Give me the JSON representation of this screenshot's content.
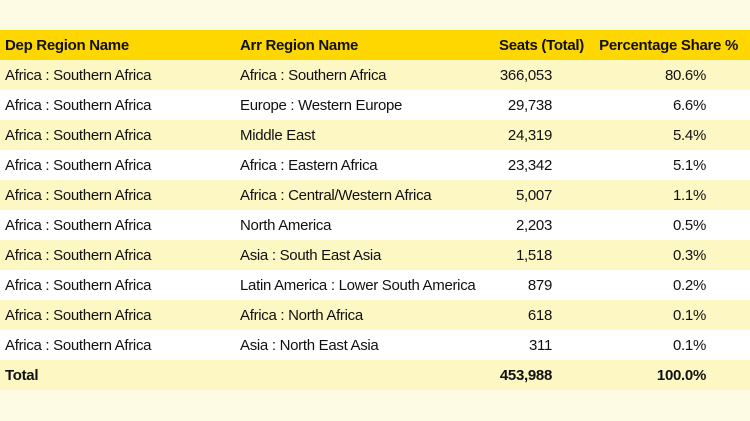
{
  "table": {
    "headers": {
      "dep": "Dep Region Name",
      "arr": "Arr Region Name",
      "seats": "Seats (Total)",
      "pct": "Percentage Share %"
    },
    "rows": [
      {
        "dep": "Africa : Southern Africa",
        "arr": "Africa : Southern Africa",
        "seats": "366,053",
        "pct": "80.6%"
      },
      {
        "dep": "Africa : Southern Africa",
        "arr": "Europe : Western Europe",
        "seats": "29,738",
        "pct": "6.6%"
      },
      {
        "dep": "Africa : Southern Africa",
        "arr": "Middle East",
        "seats": "24,319",
        "pct": "5.4%"
      },
      {
        "dep": "Africa : Southern Africa",
        "arr": "Africa : Eastern Africa",
        "seats": "23,342",
        "pct": "5.1%"
      },
      {
        "dep": "Africa : Southern Africa",
        "arr": "Africa : Central/Western Africa",
        "seats": "5,007",
        "pct": "1.1%"
      },
      {
        "dep": "Africa : Southern Africa",
        "arr": "North America",
        "seats": "2,203",
        "pct": "0.5%"
      },
      {
        "dep": "Africa : Southern Africa",
        "arr": "Asia : South East Asia",
        "seats": "1,518",
        "pct": "0.3%"
      },
      {
        "dep": "Africa : Southern Africa",
        "arr": "Latin America : Lower South America",
        "seats": "879",
        "pct": "0.2%"
      },
      {
        "dep": "Africa : Southern Africa",
        "arr": "Africa : North Africa",
        "seats": "618",
        "pct": "0.1%"
      },
      {
        "dep": "Africa : Southern Africa",
        "arr": "Asia : North East Asia",
        "seats": "311",
        "pct": "0.1%"
      }
    ],
    "total": {
      "label": "Total",
      "seats": "453,988",
      "pct": "100.0%"
    }
  },
  "colors": {
    "header_bg": "#ffd700",
    "stripe_bg": "#fdf7c4",
    "page_bg": "#fdfbe4"
  }
}
